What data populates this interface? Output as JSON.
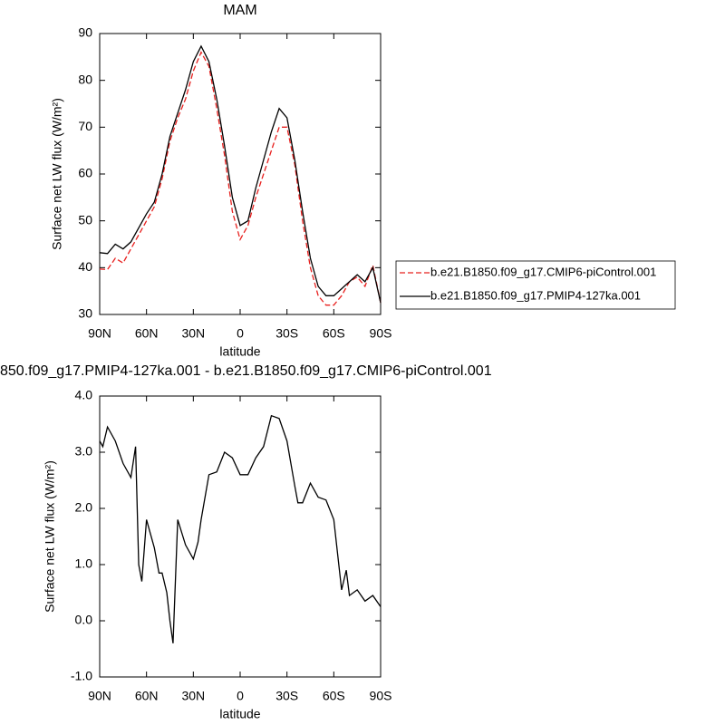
{
  "chart_data": [
    {
      "type": "line",
      "title": "MAM",
      "xlabel": "latitude",
      "ylabel": "Surface net LW flux (W/m²)",
      "x": [
        90,
        85,
        80,
        75,
        70,
        65,
        60,
        55,
        50,
        45,
        40,
        35,
        30,
        25,
        20,
        15,
        10,
        5,
        0,
        -5,
        -10,
        -15,
        -20,
        -25,
        -30,
        -35,
        -40,
        -45,
        -50,
        -55,
        -60,
        -65,
        -70,
        -75,
        -80,
        -85,
        -90
      ],
      "xlim": [
        90,
        -90
      ],
      "xticks": [
        {
          "value": 90,
          "label": "90N"
        },
        {
          "value": 60,
          "label": "60N"
        },
        {
          "value": 30,
          "label": "30N"
        },
        0,
        {
          "value": -30,
          "label": "30S"
        },
        {
          "value": -60,
          "label": "60S"
        },
        {
          "value": -90,
          "label": "90S"
        }
      ],
      "ylim": [
        30,
        90
      ],
      "yticks": [
        30,
        40,
        50,
        60,
        70,
        80,
        90
      ],
      "legend": "outside-right",
      "series": [
        {
          "name": "b.e21.B1850.f09_g17.CMIP6-piControl.001",
          "color": "#e8201e",
          "linestyle": "dashed",
          "values": [
            39.7,
            39.6,
            42,
            41,
            44,
            47,
            50,
            53,
            59,
            67,
            72,
            76,
            82,
            86,
            83,
            74,
            64,
            52,
            46,
            49,
            55,
            60,
            65,
            70,
            70,
            62,
            50,
            40,
            34,
            32,
            32,
            34,
            37,
            38,
            36,
            40.5,
            32.5
          ]
        },
        {
          "name": "b.e21.B1850.f09_g17.PMIP4-127ka.001",
          "color": "#000000",
          "linestyle": "solid",
          "values": [
            43.2,
            43,
            45,
            44,
            45.5,
            48.5,
            51.5,
            54,
            60,
            68,
            73,
            78,
            84,
            87.3,
            84,
            76,
            66,
            55,
            49,
            50,
            57,
            63,
            69,
            74,
            72,
            63,
            52,
            42,
            36,
            34,
            34,
            35.5,
            37,
            38.5,
            37,
            40,
            32.5
          ]
        }
      ]
    },
    {
      "type": "line",
      "title": "850.f09_g17.PMIP4-127ka.001 - b.e21.B1850.f09_g17.CMIP6-piControl.001",
      "xlabel": "latitude",
      "ylabel": "Surface net LW flux (W/m²)",
      "x": [
        90,
        88,
        85,
        80,
        75,
        70,
        67,
        65,
        63,
        60,
        55,
        52,
        50,
        47,
        45,
        43,
        40,
        35,
        30,
        27,
        25,
        20,
        15,
        10,
        5,
        0,
        -5,
        -10,
        -15,
        -20,
        -25,
        -30,
        -35,
        -37,
        -40,
        -45,
        -50,
        -55,
        -60,
        -65,
        -68,
        -70,
        -75,
        -80,
        -85,
        -90
      ],
      "xlim": [
        90,
        -90
      ],
      "xticks": [
        {
          "value": 90,
          "label": "90N"
        },
        {
          "value": 60,
          "label": "60N"
        },
        {
          "value": 30,
          "label": "30N"
        },
        0,
        {
          "value": -30,
          "label": "30S"
        },
        {
          "value": -60,
          "label": "60S"
        },
        {
          "value": -90,
          "label": "90S"
        }
      ],
      "ylim": [
        -1,
        4
      ],
      "yticks": [
        {
          "value": -1,
          "label": "-1.0"
        },
        {
          "value": 0,
          "label": "0.0"
        },
        {
          "value": 1,
          "label": "1.0"
        },
        {
          "value": 2,
          "label": "2.0"
        },
        {
          "value": 3,
          "label": "3.0"
        },
        {
          "value": 4,
          "label": "4.0"
        }
      ],
      "series": [
        {
          "color": "#000000",
          "linestyle": "solid",
          "values": [
            3.2,
            3.1,
            3.45,
            3.2,
            2.8,
            2.55,
            3.1,
            1.0,
            0.7,
            1.8,
            1.3,
            0.85,
            0.85,
            0.5,
            0.0,
            -0.4,
            1.8,
            1.35,
            1.1,
            1.4,
            1.8,
            2.6,
            2.65,
            3.0,
            2.9,
            2.6,
            2.6,
            2.9,
            3.1,
            3.65,
            3.6,
            3.2,
            2.4,
            2.1,
            2.1,
            2.45,
            2.2,
            2.15,
            1.8,
            0.55,
            0.9,
            0.45,
            0.55,
            0.35,
            0.45,
            0.25
          ]
        }
      ]
    }
  ]
}
